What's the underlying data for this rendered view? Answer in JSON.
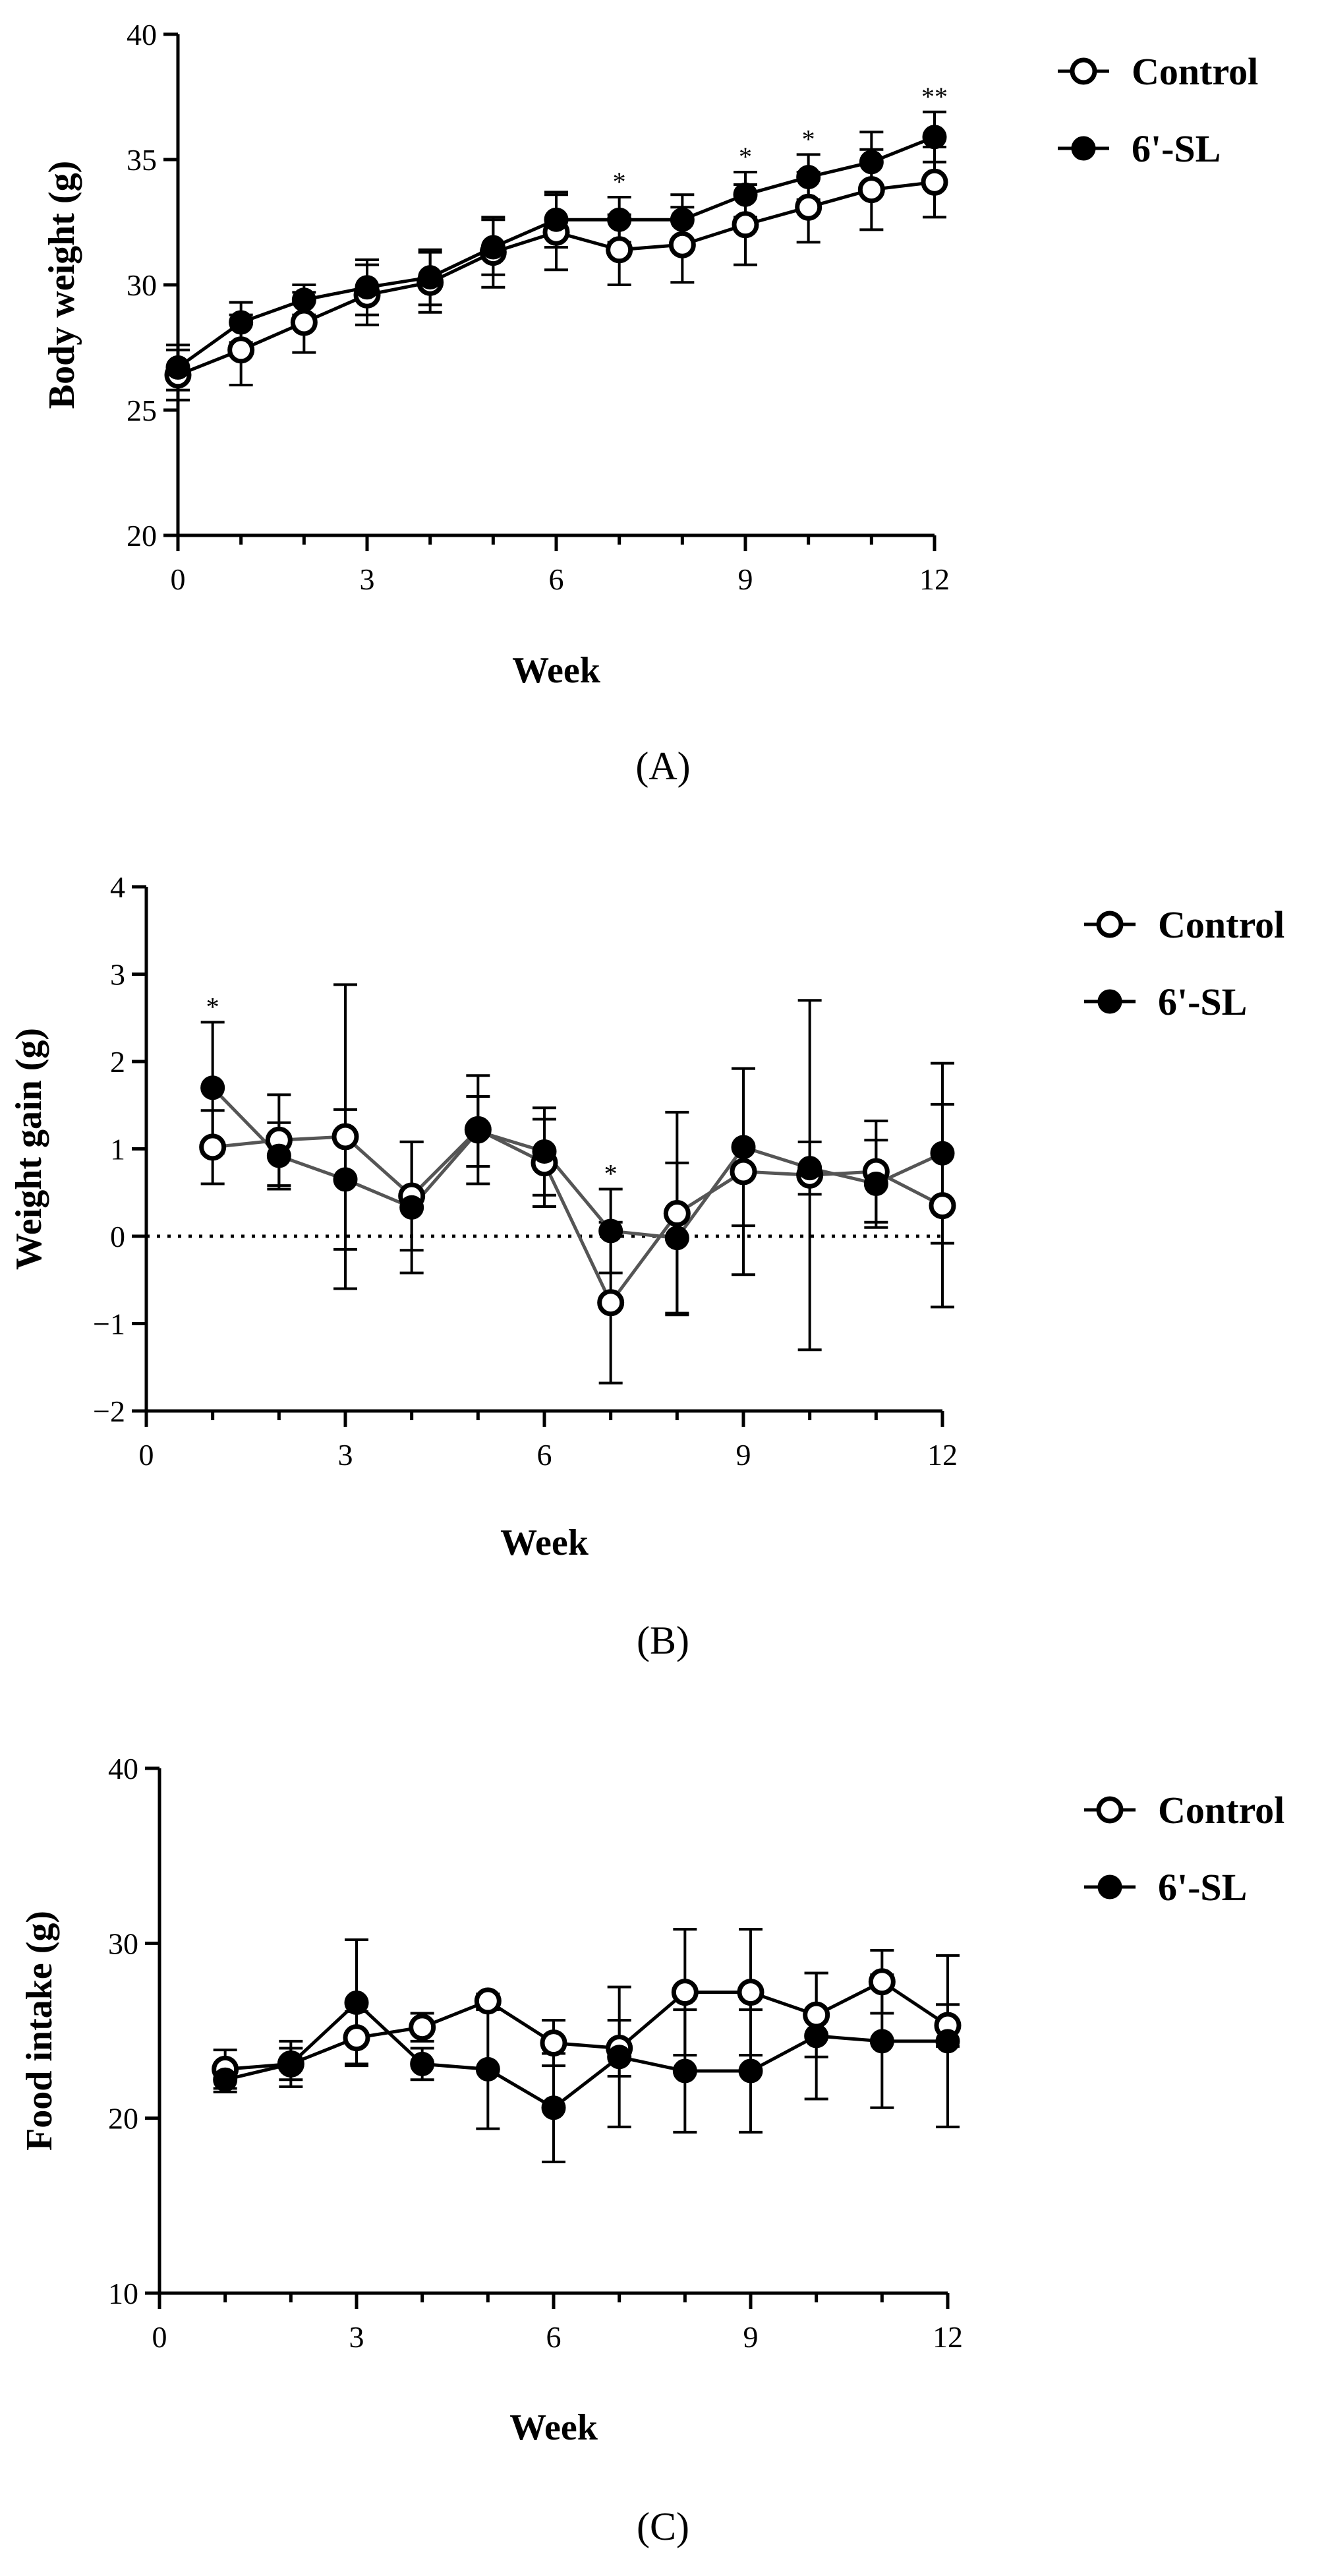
{
  "legend": {
    "control": "Control",
    "treatment": "6'-SL"
  },
  "colors": {
    "axis": "#000000",
    "control_fill": "#ffffff",
    "treatment_fill": "#000000",
    "line_b": "#555555"
  },
  "chart_data": [
    {
      "id": "A",
      "type": "line",
      "panel_label": "(A)",
      "xlabel": "Week",
      "ylabel": "Body weight (g)",
      "xlim": [
        0,
        12
      ],
      "ylim": [
        20,
        40
      ],
      "xticks": [
        0,
        3,
        6,
        9,
        12
      ],
      "yticks": [
        20,
        25,
        30,
        35,
        40
      ],
      "minor_xticks": [
        1,
        2,
        4,
        5,
        7,
        8,
        10,
        11
      ],
      "x": [
        0,
        1,
        2,
        3,
        4,
        5,
        6,
        7,
        8,
        9,
        10,
        11,
        12
      ],
      "series": [
        {
          "name": "Control",
          "marker": "open-circle",
          "values": [
            26.4,
            27.4,
            28.5,
            29.6,
            30.1,
            31.3,
            32.1,
            31.4,
            31.6,
            32.4,
            33.1,
            33.8,
            34.1
          ],
          "errors": [
            1.0,
            1.4,
            1.2,
            1.2,
            1.2,
            1.4,
            1.5,
            1.4,
            1.5,
            1.6,
            1.4,
            1.6,
            1.4
          ]
        },
        {
          "name": "6'-SL",
          "marker": "filled-circle",
          "values": [
            26.7,
            28.5,
            29.4,
            29.9,
            30.3,
            31.5,
            32.6,
            32.6,
            32.6,
            33.6,
            34.3,
            34.9,
            35.9
          ],
          "errors": [
            0.9,
            0.8,
            0.6,
            1.1,
            1.1,
            1.1,
            1.1,
            0.9,
            1.0,
            0.9,
            0.9,
            1.2,
            1.0
          ]
        }
      ],
      "annotations": [
        {
          "x": 7,
          "text": "*"
        },
        {
          "x": 9,
          "text": "*"
        },
        {
          "x": 10,
          "text": "*"
        },
        {
          "x": 12,
          "text": "**"
        }
      ]
    },
    {
      "id": "B",
      "type": "line",
      "panel_label": "(B)",
      "xlabel": "Week",
      "ylabel": "Weight gain (g)",
      "xlim": [
        0,
        12
      ],
      "ylim": [
        -2,
        4
      ],
      "xticks": [
        0,
        3,
        6,
        9,
        12
      ],
      "yticks": [
        -2,
        -1,
        0,
        1,
        2,
        3,
        4
      ],
      "minor_xticks": [
        1,
        2,
        4,
        5,
        7,
        8,
        10,
        11
      ],
      "reference_line_y": 0,
      "x": [
        1,
        2,
        3,
        4,
        5,
        6,
        7,
        8,
        9,
        10,
        11,
        12
      ],
      "series": [
        {
          "name": "Control",
          "marker": "open-circle",
          "values": [
            1.02,
            1.1,
            1.14,
            0.46,
            1.22,
            0.84,
            -0.76,
            0.26,
            0.74,
            0.7,
            0.74,
            0.35
          ],
          "errors": [
            0.42,
            0.52,
            1.74,
            0.62,
            0.62,
            0.5,
            0.92,
            1.16,
            1.18,
            2.0,
            0.58,
            1.16
          ]
        },
        {
          "name": "6'-SL",
          "marker": "filled-circle",
          "values": [
            1.7,
            0.92,
            0.65,
            0.33,
            1.2,
            0.97,
            0.06,
            -0.02,
            1.02,
            0.78,
            0.6,
            0.95
          ],
          "errors": [
            0.75,
            0.38,
            0.8,
            0.75,
            0.4,
            0.5,
            0.48,
            0.86,
            0.9,
            0.3,
            0.5,
            1.03
          ]
        }
      ],
      "annotations": [
        {
          "x": 1,
          "text": "*"
        },
        {
          "x": 7,
          "text": "*"
        }
      ]
    },
    {
      "id": "C",
      "type": "line",
      "panel_label": "(C)",
      "xlabel": "Week",
      "ylabel": "Food intake (g)",
      "xlim": [
        0,
        12
      ],
      "ylim": [
        10,
        40
      ],
      "xticks": [
        0,
        3,
        6,
        9,
        12
      ],
      "yticks": [
        10,
        20,
        30,
        40
      ],
      "minor_xticks": [
        1,
        2,
        4,
        5,
        7,
        8,
        10,
        11
      ],
      "x": [
        1,
        2,
        3,
        4,
        5,
        6,
        7,
        8,
        9,
        10,
        11,
        12
      ],
      "series": [
        {
          "name": "Control",
          "marker": "open-circle",
          "values": [
            22.8,
            23.1,
            24.6,
            25.2,
            26.7,
            24.3,
            24.0,
            27.2,
            27.2,
            25.9,
            27.8,
            25.3
          ],
          "errors": [
            1.1,
            0.9,
            1.5,
            0.8,
            0.4,
            1.3,
            1.6,
            3.6,
            3.6,
            2.4,
            1.8,
            1.2
          ]
        },
        {
          "name": "6'-SL",
          "marker": "filled-circle",
          "values": [
            22.2,
            23.1,
            26.6,
            23.1,
            22.8,
            20.6,
            23.5,
            22.7,
            22.7,
            24.7,
            24.4,
            24.4
          ],
          "errors": [
            0.7,
            1.3,
            3.6,
            0.9,
            3.4,
            3.1,
            4.0,
            3.5,
            3.5,
            3.6,
            3.8,
            4.9
          ]
        }
      ],
      "annotations": []
    }
  ]
}
